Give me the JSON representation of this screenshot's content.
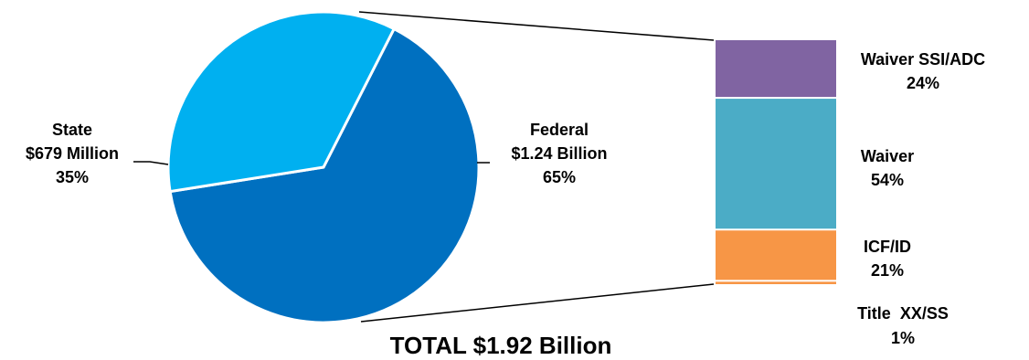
{
  "chart_data": [
    {
      "type": "pie",
      "total_label": "TOTAL $1.92 Billion",
      "slices": [
        {
          "name": "Federal",
          "amount": "$1.24 Billion",
          "percent_label": "65%",
          "value": 65,
          "color": "#0070C0"
        },
        {
          "name": "State",
          "amount": "$679 Million",
          "percent_label": "35%",
          "value": 35,
          "color": "#00B0F0"
        }
      ]
    },
    {
      "type": "bar",
      "stacked": true,
      "parent_slice": "Federal",
      "segments": [
        {
          "name": "Waiver SSI/ADC",
          "percent_label": "24%",
          "value": 24,
          "color": "#8064A2"
        },
        {
          "name": "Waiver",
          "percent_label": "54%",
          "value": 54,
          "color": "#4BACC6"
        },
        {
          "name": "ICF/ID",
          "percent_label": "21%",
          "value": 21,
          "color": "#F79646"
        },
        {
          "name": "Title  XX/SS",
          "percent_label": "1%",
          "value": 1,
          "color": "#F79646"
        }
      ]
    }
  ]
}
